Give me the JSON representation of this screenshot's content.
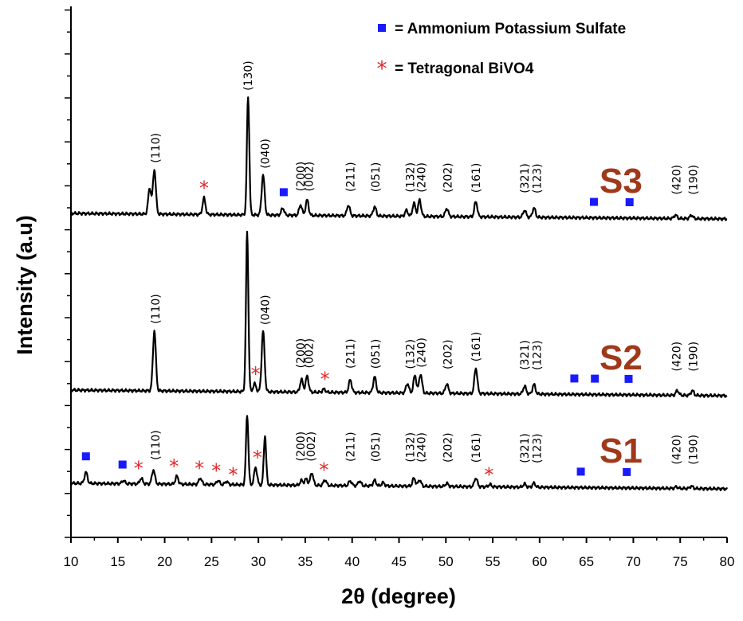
{
  "chart_data": {
    "type": "line",
    "title": "",
    "xlabel": "2θ (degree)",
    "ylabel": "Intensity (a.u)",
    "xlim": [
      10,
      80
    ],
    "xticks": [
      10,
      15,
      20,
      25,
      30,
      35,
      40,
      45,
      50,
      55,
      60,
      65,
      70,
      75,
      80
    ],
    "colors": {
      "line": "#000000",
      "square": "#1a1aff",
      "star": "#e0292b",
      "sample": "#a0381a"
    },
    "legend": [
      {
        "marker": "square",
        "label": "= Ammonium Potassium Sulfate"
      },
      {
        "marker": "star",
        "label": "= Tetragonal BiVO4"
      }
    ],
    "series": [
      {
        "name": "S3",
        "baseline": 0,
        "peaks": [
          {
            "x": 18.4,
            "h": 0.22
          },
          {
            "x": 18.9,
            "h": 0.38
          },
          {
            "x": 24.2,
            "h": 0.14
          },
          {
            "x": 28.9,
            "h": 1.0
          },
          {
            "x": 30.5,
            "h": 0.34
          },
          {
            "x": 32.6,
            "h": 0.06
          },
          {
            "x": 34.5,
            "h": 0.09
          },
          {
            "x": 35.2,
            "h": 0.13
          },
          {
            "x": 39.6,
            "h": 0.09
          },
          {
            "x": 42.4,
            "h": 0.08
          },
          {
            "x": 45.8,
            "h": 0.05
          },
          {
            "x": 46.6,
            "h": 0.11
          },
          {
            "x": 47.2,
            "h": 0.14
          },
          {
            "x": 50.1,
            "h": 0.07
          },
          {
            "x": 53.2,
            "h": 0.13
          },
          {
            "x": 58.4,
            "h": 0.06
          },
          {
            "x": 59.4,
            "h": 0.08
          },
          {
            "x": 74.5,
            "h": 0.03
          },
          {
            "x": 76.2,
            "h": 0.03
          }
        ],
        "hkl": [
          {
            "x": 19.0,
            "label": "(110)"
          },
          {
            "x": 28.9,
            "label": "(130)"
          },
          {
            "x": 30.7,
            "label": "(040)"
          },
          {
            "x": 34.5,
            "label": "(200)"
          },
          {
            "x": 35.4,
            "label": "(002)"
          },
          {
            "x": 39.8,
            "label": "(211)"
          },
          {
            "x": 42.5,
            "label": "(051)"
          },
          {
            "x": 46.2,
            "label": "(132)"
          },
          {
            "x": 47.4,
            "label": "(240)"
          },
          {
            "x": 50.2,
            "label": "(202)"
          },
          {
            "x": 53.2,
            "label": "(161)"
          },
          {
            "x": 58.4,
            "label": "(321)"
          },
          {
            "x": 59.7,
            "label": "(123)"
          },
          {
            "x": 74.6,
            "label": "(420)"
          },
          {
            "x": 76.4,
            "label": "(190)"
          }
        ],
        "squares": [
          32.7,
          65.8,
          69.6
        ],
        "stars": [
          24.2
        ],
        "sample_label": "S3"
      },
      {
        "name": "S2",
        "baseline": 1,
        "peaks": [
          {
            "x": 18.9,
            "h": 0.38
          },
          {
            "x": 28.8,
            "h": 1.0
          },
          {
            "x": 29.6,
            "h": 0.05
          },
          {
            "x": 30.5,
            "h": 0.38
          },
          {
            "x": 34.6,
            "h": 0.08
          },
          {
            "x": 35.2,
            "h": 0.1
          },
          {
            "x": 37.0,
            "h": 0.02
          },
          {
            "x": 39.8,
            "h": 0.08
          },
          {
            "x": 42.4,
            "h": 0.1
          },
          {
            "x": 45.9,
            "h": 0.06
          },
          {
            "x": 46.7,
            "h": 0.11
          },
          {
            "x": 47.3,
            "h": 0.12
          },
          {
            "x": 50.1,
            "h": 0.06
          },
          {
            "x": 53.2,
            "h": 0.16
          },
          {
            "x": 58.4,
            "h": 0.05
          },
          {
            "x": 59.4,
            "h": 0.06
          },
          {
            "x": 74.7,
            "h": 0.03
          },
          {
            "x": 76.3,
            "h": 0.03
          }
        ],
        "hkl": [
          {
            "x": 19.0,
            "label": "(110)"
          },
          {
            "x": 30.7,
            "label": "(040)"
          },
          {
            "x": 34.5,
            "label": "(200)"
          },
          {
            "x": 35.4,
            "label": "(002)"
          },
          {
            "x": 39.8,
            "label": "(211)"
          },
          {
            "x": 42.5,
            "label": "(051)"
          },
          {
            "x": 46.2,
            "label": "(132)"
          },
          {
            "x": 47.4,
            "label": "(240)"
          },
          {
            "x": 50.2,
            "label": "(202)"
          },
          {
            "x": 53.2,
            "label": "(161)"
          },
          {
            "x": 58.4,
            "label": "(321)"
          },
          {
            "x": 59.7,
            "label": "(123)"
          },
          {
            "x": 74.6,
            "label": "(420)"
          },
          {
            "x": 76.4,
            "label": "(190)"
          }
        ],
        "squares": [
          63.7,
          65.9,
          69.5
        ],
        "stars": [
          29.7,
          37.1
        ],
        "sample_label": "S2"
      },
      {
        "name": "S1",
        "baseline": 2,
        "peaks": [
          {
            "x": 11.6,
            "h": 0.14
          },
          {
            "x": 15.6,
            "h": 0.04
          },
          {
            "x": 17.5,
            "h": 0.07
          },
          {
            "x": 18.8,
            "h": 0.18
          },
          {
            "x": 21.3,
            "h": 0.1
          },
          {
            "x": 23.8,
            "h": 0.08
          },
          {
            "x": 25.7,
            "h": 0.05
          },
          {
            "x": 26.6,
            "h": 0.04
          },
          {
            "x": 28.8,
            "h": 0.88
          },
          {
            "x": 29.7,
            "h": 0.22
          },
          {
            "x": 30.7,
            "h": 0.62
          },
          {
            "x": 34.6,
            "h": 0.06
          },
          {
            "x": 35.1,
            "h": 0.08
          },
          {
            "x": 35.7,
            "h": 0.16
          },
          {
            "x": 37.1,
            "h": 0.07
          },
          {
            "x": 39.8,
            "h": 0.06
          },
          {
            "x": 40.8,
            "h": 0.06
          },
          {
            "x": 42.4,
            "h": 0.07
          },
          {
            "x": 43.3,
            "h": 0.04
          },
          {
            "x": 46.6,
            "h": 0.1
          },
          {
            "x": 47.2,
            "h": 0.08
          },
          {
            "x": 50.1,
            "h": 0.04
          },
          {
            "x": 53.2,
            "h": 0.11
          },
          {
            "x": 54.7,
            "h": 0.03
          },
          {
            "x": 58.4,
            "h": 0.04
          },
          {
            "x": 59.4,
            "h": 0.05
          },
          {
            "x": 74.6,
            "h": 0.02
          },
          {
            "x": 76.2,
            "h": 0.03
          }
        ],
        "hkl": [
          {
            "x": 19.0,
            "label": "(110)"
          },
          {
            "x": 34.5,
            "label": "(200)"
          },
          {
            "x": 35.6,
            "label": "(002)"
          },
          {
            "x": 39.8,
            "label": "(211)"
          },
          {
            "x": 42.5,
            "label": "(051)"
          },
          {
            "x": 46.2,
            "label": "(132)"
          },
          {
            "x": 47.4,
            "label": "(240)"
          },
          {
            "x": 50.2,
            "label": "(202)"
          },
          {
            "x": 53.2,
            "label": "(161)"
          },
          {
            "x": 58.4,
            "label": "(321)"
          },
          {
            "x": 59.7,
            "label": "(123)"
          },
          {
            "x": 74.6,
            "label": "(420)"
          },
          {
            "x": 76.4,
            "label": "(190)"
          }
        ],
        "squares": [
          11.6,
          15.5,
          64.4,
          69.3
        ],
        "stars": [
          17.2,
          21.0,
          23.7,
          25.5,
          27.3,
          29.9,
          37.0,
          54.6
        ],
        "sample_label": "S1"
      }
    ]
  }
}
